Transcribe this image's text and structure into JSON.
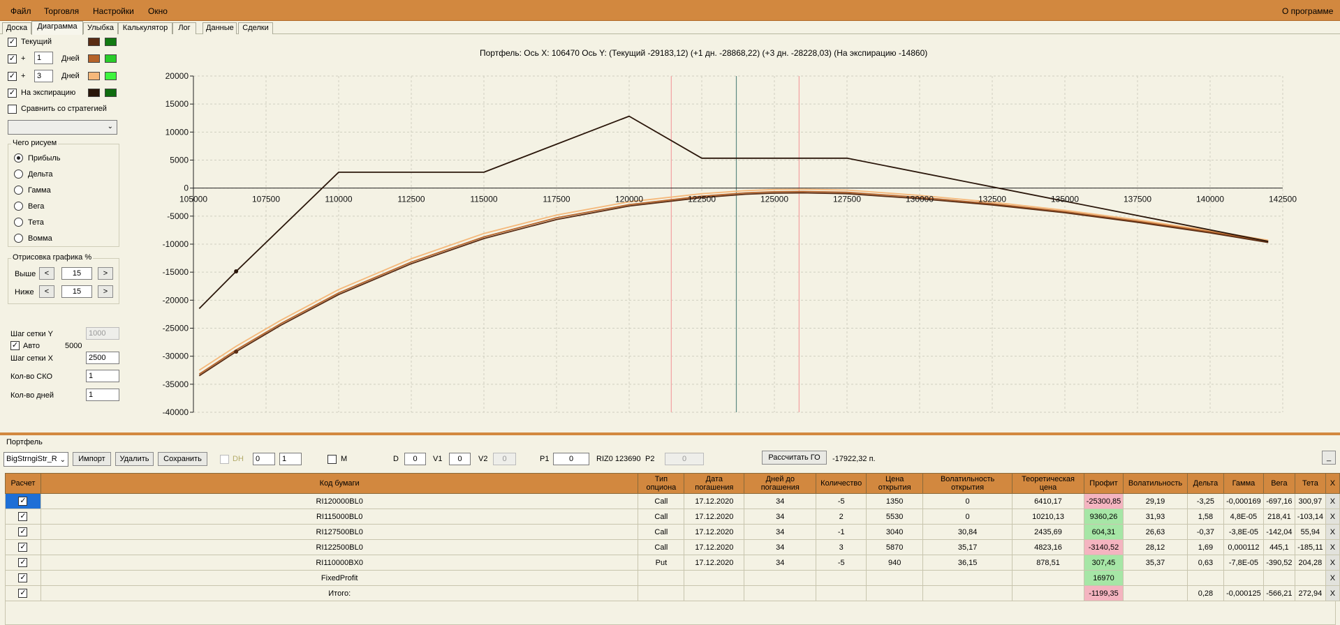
{
  "menu": {
    "file": "Файл",
    "trade": "Торговля",
    "settings": "Настройки",
    "window": "Окно",
    "about": "О программе"
  },
  "tabs": [
    "Доска",
    "Диаграмма",
    "Улыбка",
    "Калькулятор",
    "Лог",
    "Данные",
    "Сделки"
  ],
  "active_tab": "Диаграмма",
  "left": {
    "current_label": "Текущий",
    "plus": "+",
    "days_label": "Дней",
    "days1": "1",
    "days2": "3",
    "expiry_label": "На экспирацию",
    "compare_label": "Сравнить со стратегией",
    "colors": {
      "current": [
        "#5a2d14",
        "#127a12"
      ],
      "d1": [
        "#b5632a",
        "#29cc29"
      ],
      "d3": [
        "#f5b87a",
        "#3ef53e"
      ],
      "expiry": [
        "#2a160a",
        "#0f6c0f"
      ]
    },
    "draw_group": "Чего рисуем",
    "draw_options": [
      "Прибыль",
      "Дельта",
      "Гамма",
      "Вега",
      "Тета",
      "Вомма"
    ],
    "draw_selected": "Прибыль",
    "render_group": "Отрисовка графика %",
    "above_label": "Выше",
    "above_value": "15",
    "below_label": "Ниже",
    "below_value": "15",
    "prev": "<",
    "next": ">",
    "grid_y_label": "Шаг сетки Y",
    "grid_y_value": "1000",
    "auto_label": "Авто",
    "auto_value": "5000",
    "grid_x_label": "Шаг сетки X",
    "grid_x_value": "2500",
    "sko_label": "Кол-во СКО",
    "sko_value": "1",
    "days_count_label": "Кол-во дней",
    "days_count_value": "1"
  },
  "chart_header": "Портфель: Ось X:  106470 Ось Y:   (Текущий -29183,12)  (+1 дн. -28868,22)  (+3 дн. -28228,03)  (На экспирацию -14860)",
  "chart_data": {
    "type": "line",
    "xlim": [
      105000,
      142500
    ],
    "ylim": [
      -40000,
      20000
    ],
    "x_ticks": [
      "105000",
      "107500",
      "110000",
      "112500",
      "115000",
      "117500",
      "120000",
      "122500",
      "125000",
      "127500",
      "130000",
      "132500",
      "135000",
      "137500",
      "140000",
      "142500"
    ],
    "y_ticks": [
      "20000",
      "15000",
      "10000",
      "5000",
      "0",
      "-5000",
      "-10000",
      "-15000",
      "-20000",
      "-25000",
      "-30000",
      "-35000",
      "-40000"
    ],
    "vlines": [
      {
        "x": 123690,
        "color": "#5e8a82"
      },
      {
        "x": 121450,
        "color": "#f2a0a0"
      },
      {
        "x": 125850,
        "color": "#f2a0a0"
      }
    ],
    "series": [
      {
        "color": "#2a160a",
        "x": [
          105200,
          106470,
          110000,
          115000,
          120000,
          122500,
          127500,
          142000
        ],
        "y": [
          -21500,
          -14860,
          2830,
          2830,
          12830,
          5330,
          5330,
          -9500
        ]
      },
      {
        "color": "#5a2d14",
        "x": [
          105200,
          106470,
          108000,
          110000,
          112500,
          115000,
          117500,
          120000,
          122500,
          124000,
          125000,
          126000,
          127500,
          130000,
          132500,
          135000,
          137500,
          140000,
          142000
        ],
        "y": [
          -33500,
          -29183,
          -24500,
          -19000,
          -13500,
          -9000,
          -5600,
          -3200,
          -1700,
          -1100,
          -900,
          -850,
          -1000,
          -1900,
          -3000,
          -4400,
          -6100,
          -8000,
          -9700
        ]
      },
      {
        "color": "#b5632a",
        "x": [
          105200,
          106470,
          108000,
          110000,
          112500,
          115000,
          117500,
          120000,
          122500,
          124000,
          125000,
          126000,
          127500,
          130000,
          132500,
          135000,
          137500,
          140000,
          142000
        ],
        "y": [
          -33200,
          -28868,
          -24200,
          -18700,
          -13200,
          -8700,
          -5300,
          -2950,
          -1450,
          -850,
          -650,
          -600,
          -750,
          -1650,
          -2800,
          -4200,
          -5900,
          -7800,
          -9500
        ]
      },
      {
        "color": "#f5b87a",
        "x": [
          105200,
          106470,
          108000,
          110000,
          112500,
          115000,
          117500,
          120000,
          122500,
          124000,
          125000,
          126000,
          127500,
          130000,
          132500,
          135000,
          137500,
          140000,
          142000
        ],
        "y": [
          -32500,
          -28228,
          -23600,
          -18100,
          -12600,
          -8100,
          -4800,
          -2450,
          -1000,
          -450,
          -250,
          -200,
          -350,
          -1300,
          -2500,
          -3950,
          -5650,
          -7600,
          -9300
        ]
      }
    ],
    "markers": [
      {
        "x": 106470,
        "y": -14860,
        "color": "#2a160a"
      },
      {
        "x": 106470,
        "y": -29183,
        "color": "#5a2d14"
      }
    ]
  },
  "portfolio": {
    "group_label": "Портфель",
    "select_value": "BigStrngiStr_R",
    "import": "Импорт",
    "delete": "Удалить",
    "save": "Сохранить",
    "dh": "DH",
    "spin1": "0",
    "spin2": "1",
    "m": "M",
    "d_label": "D",
    "d_value": "0",
    "v1_label": "V1",
    "v1_value": "0",
    "v2_label": "V2",
    "v2_value": "0",
    "p1_label": "P1",
    "p1_value": "0",
    "riz": "RIZ0 123690",
    "p2_label": "P2",
    "p2_value": "0",
    "calc_go": "Рассчитать ГО",
    "go_value": "-17922,32 п.",
    "min_btn": "_"
  },
  "table": {
    "headers": [
      "Расчет",
      "Код бумаги",
      "Тип опциона",
      "Дата погашения",
      "Дней до погашения",
      "Количество",
      "Цена открытия",
      "Волатильность открытия",
      "Теоретическая цена",
      "Профит",
      "Волатильность",
      "Дельта",
      "Гамма",
      "Вега",
      "Тета",
      "X"
    ],
    "rows": [
      [
        "RI120000BL0",
        "Call",
        "17.12.2020",
        "34",
        "-5",
        "1350",
        "0",
        "6410,17",
        "-25300,85",
        "29,19",
        "-3,25",
        "-0,000169",
        "-697,16",
        "300,97",
        "X"
      ],
      [
        "RI115000BL0",
        "Call",
        "17.12.2020",
        "34",
        "2",
        "5530",
        "0",
        "10210,13",
        "9360,26",
        "31,93",
        "1,58",
        "4,8E-05",
        "218,41",
        "-103,14",
        "X"
      ],
      [
        "RI127500BL0",
        "Call",
        "17.12.2020",
        "34",
        "-1",
        "3040",
        "30,84",
        "2435,69",
        "604,31",
        "26,63",
        "-0,37",
        "-3,8E-05",
        "-142,04",
        "55,94",
        "X"
      ],
      [
        "RI122500BL0",
        "Call",
        "17.12.2020",
        "34",
        "3",
        "5870",
        "35,17",
        "4823,16",
        "-3140,52",
        "28,12",
        "1,69",
        "0,000112",
        "445,1",
        "-185,11",
        "X"
      ],
      [
        "RI110000BX0",
        "Put",
        "17.12.2020",
        "34",
        "-5",
        "940",
        "36,15",
        "878,51",
        "307,45",
        "35,37",
        "0,63",
        "-7,8E-05",
        "-390,52",
        "204,28",
        "X"
      ],
      [
        "FixedProfit",
        "",
        "",
        "",
        "",
        "",
        "",
        "",
        "16970",
        "",
        "",
        "",
        "",
        "",
        "X"
      ],
      [
        "Итого:",
        "",
        "",
        "",
        "",
        "",
        "",
        "",
        "-1199,35",
        "",
        "0,28",
        "-0,000125",
        "-566,21",
        "272,94",
        "X"
      ]
    ],
    "profit_colors": [
      "red",
      "green",
      "green",
      "red",
      "green",
      "green",
      "red"
    ]
  }
}
